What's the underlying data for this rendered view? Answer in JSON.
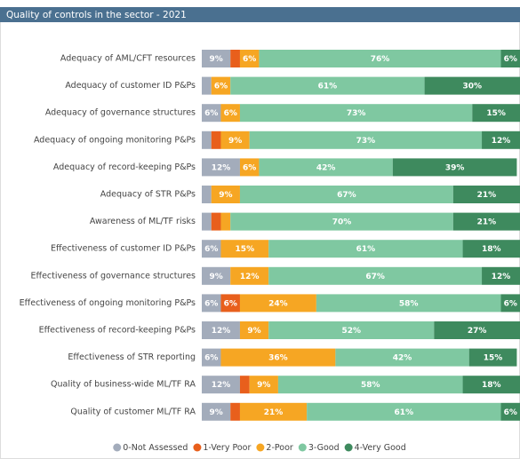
{
  "chart_data": {
    "type": "stacked-bar-horizontal",
    "title": "Quality of controls in the sector - 2021",
    "categories": [
      "Adequacy of AML/CFT resources",
      "Adequacy of customer ID P&Ps",
      "Adequacy of governance structures",
      "Adequacy of ongoing monitoring P&Ps",
      "Adequacy of record-keeping P&Ps",
      "Adequacy of STR P&Ps",
      "Awareness of ML/TF risks",
      "Effectiveness of customer ID P&Ps",
      "Effectiveness of governance structures",
      "Effectiveness of ongoing monitoring P&Ps",
      "Effectiveness of record-keeping P&Ps",
      "Effectiveness of STR reporting",
      "Quality of business-wide ML/TF RA",
      "Quality of customer ML/TF RA"
    ],
    "xlim": [
      0,
      100
    ],
    "series": [
      {
        "name": "0-Not Assessed",
        "color": "#a3acbb",
        "values": [
          9,
          3,
          6,
          3,
          12,
          3,
          3,
          6,
          9,
          6,
          12,
          6,
          12,
          9
        ],
        "value_labels": [
          "9%",
          null,
          "6%",
          null,
          "12%",
          null,
          null,
          "6%",
          "9%",
          "6%",
          "12%",
          "6%",
          "12%",
          "9%"
        ]
      },
      {
        "name": "1-Very Poor",
        "color": "#e85f1c",
        "values": [
          3,
          0,
          0,
          3,
          0,
          0,
          3,
          0,
          0,
          6,
          0,
          0,
          3,
          3
        ],
        "value_labels": [
          null,
          null,
          null,
          null,
          null,
          null,
          null,
          null,
          null,
          "6%",
          null,
          null,
          null,
          null
        ]
      },
      {
        "name": "2-Poor",
        "color": "#f6a623",
        "values": [
          6,
          6,
          6,
          9,
          6,
          9,
          3,
          15,
          12,
          24,
          9,
          36,
          9,
          21
        ],
        "value_labels": [
          "6%",
          "6%",
          "6%",
          "9%",
          "6%",
          "9%",
          null,
          "15%",
          "12%",
          "24%",
          "9%",
          "36%",
          "9%",
          "21%"
        ]
      },
      {
        "name": "3-Good",
        "color": "#7fc8a1",
        "values": [
          76,
          61,
          73,
          73,
          42,
          67,
          70,
          61,
          67,
          58,
          52,
          42,
          58,
          61
        ],
        "value_labels": [
          "76%",
          "61%",
          "73%",
          "73%",
          "42%",
          "67%",
          "70%",
          "61%",
          "67%",
          "58%",
          "52%",
          "42%",
          "58%",
          "61%"
        ]
      },
      {
        "name": "4-Very Good",
        "color": "#3e8a5e",
        "values": [
          6,
          30,
          15,
          12,
          39,
          21,
          21,
          18,
          12,
          6,
          27,
          15,
          18,
          6
        ],
        "value_labels": [
          "6%",
          "30%",
          "15%",
          "12%",
          "39%",
          "21%",
          "21%",
          "18%",
          "12%",
          "6%",
          "27%",
          "15%",
          "18%",
          "6%"
        ]
      }
    ],
    "legend": "bottom"
  }
}
